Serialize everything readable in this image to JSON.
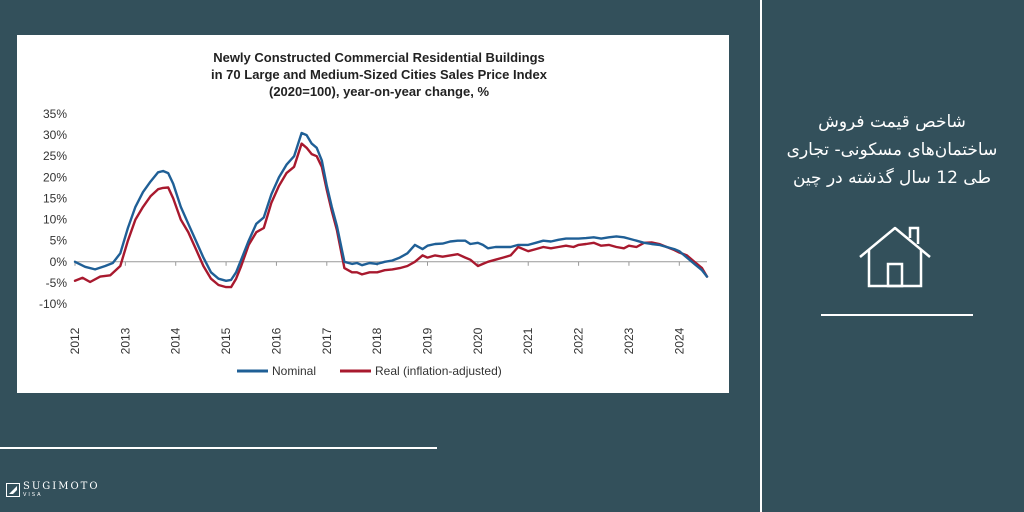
{
  "sidebar": {
    "title_lines": [
      "شاخص قیمت فروش",
      "ساختمان‌های مسکونی- تجاری",
      "طی 12 سال گذشته در چین"
    ],
    "icon": "house-icon"
  },
  "brand": {
    "name": "SUGIMOTO",
    "sub": "VISA"
  },
  "chart_data": {
    "type": "line",
    "title_lines": [
      "Newly Constructed Commercial Residential Buildings",
      "in 70 Large and Medium-Sized Cities Sales Price Index",
      "(2020=100),  year-on-year change, %"
    ],
    "xlabel": "",
    "ylabel": "",
    "ylim": [
      -10,
      35
    ],
    "xlim": [
      2012,
      2024.55
    ],
    "yticks": [
      -10,
      -5,
      0,
      5,
      10,
      15,
      20,
      25,
      30,
      35
    ],
    "ytick_labels": [
      "-10%",
      "-5%",
      "0%",
      "5%",
      "10%",
      "15%",
      "20%",
      "25%",
      "30%",
      "35%"
    ],
    "xticks": [
      2012,
      2013,
      2014,
      2015,
      2016,
      2017,
      2018,
      2019,
      2020,
      2021,
      2022,
      2023,
      2024
    ],
    "xtick_labels": [
      "2012",
      "2013",
      "2014",
      "2015",
      "2016",
      "2017",
      "2018",
      "2019",
      "2020",
      "2021",
      "2022",
      "2023",
      "2024"
    ],
    "grid": false,
    "legend": "bottom",
    "series": [
      {
        "name": "Nominal",
        "color": "#1f5f96",
        "x": [
          2012.0,
          2012.2,
          2012.4,
          2012.6,
          2012.75,
          2012.9,
          2013.05,
          2013.2,
          2013.35,
          2013.5,
          2013.65,
          2013.75,
          2013.85,
          2013.95,
          2014.1,
          2014.25,
          2014.4,
          2014.55,
          2014.7,
          2014.85,
          2015.0,
          2015.1,
          2015.2,
          2015.3,
          2015.45,
          2015.6,
          2015.75,
          2015.9,
          2016.05,
          2016.2,
          2016.35,
          2016.5,
          2016.6,
          2016.7,
          2016.8,
          2016.9,
          2017.0,
          2017.1,
          2017.2,
          2017.35,
          2017.5,
          2017.6,
          2017.7,
          2017.85,
          2018.0,
          2018.15,
          2018.3,
          2018.45,
          2018.6,
          2018.75,
          2018.9,
          2019.0,
          2019.15,
          2019.3,
          2019.45,
          2019.6,
          2019.75,
          2019.85,
          2020.0,
          2020.1,
          2020.2,
          2020.35,
          2020.5,
          2020.65,
          2020.8,
          2021.0,
          2021.15,
          2021.3,
          2021.45,
          2021.6,
          2021.75,
          2021.9,
          2022.0,
          2022.15,
          2022.3,
          2022.45,
          2022.6,
          2022.75,
          2022.9,
          2023.0,
          2023.15,
          2023.3,
          2023.45,
          2023.6,
          2023.75,
          2023.9,
          2024.0,
          2024.15,
          2024.3,
          2024.45,
          2024.55
        ],
        "values": [
          0,
          -1.2,
          -1.8,
          -1.0,
          -0.3,
          2,
          8,
          13,
          16.5,
          19,
          21.2,
          21.5,
          21,
          18.5,
          13,
          9,
          5,
          1,
          -2.5,
          -4,
          -4.5,
          -4.3,
          -2.5,
          0.5,
          5,
          9,
          10.5,
          16,
          20,
          23,
          25,
          30.5,
          30,
          28,
          27,
          24,
          18,
          13,
          8.5,
          0,
          -0.5,
          -0.3,
          -0.8,
          -0.3,
          -0.5,
          0,
          0.3,
          1,
          2,
          4,
          3,
          3.8,
          4.2,
          4.3,
          4.8,
          5,
          5,
          4.2,
          4.5,
          4,
          3.2,
          3.5,
          3.5,
          3.5,
          4,
          4,
          4.5,
          5,
          4.8,
          5.2,
          5.5,
          5.5,
          5.5,
          5.6,
          5.8,
          5.5,
          5.8,
          6,
          5.8,
          5.5,
          5,
          4.5,
          4.2,
          4,
          3.5,
          3,
          2.5,
          1,
          -0.5,
          -2,
          -3.5
        ]
      },
      {
        "name": "Real (inflation-adjusted)",
        "color": "#a8192e",
        "x": [
          2012.0,
          2012.15,
          2012.3,
          2012.5,
          2012.7,
          2012.9,
          2013.05,
          2013.2,
          2013.35,
          2013.5,
          2013.65,
          2013.75,
          2013.85,
          2013.95,
          2014.1,
          2014.25,
          2014.4,
          2014.55,
          2014.7,
          2014.85,
          2015.0,
          2015.1,
          2015.2,
          2015.3,
          2015.45,
          2015.6,
          2015.75,
          2015.9,
          2016.05,
          2016.2,
          2016.35,
          2016.5,
          2016.6,
          2016.7,
          2016.8,
          2016.9,
          2017.0,
          2017.1,
          2017.2,
          2017.35,
          2017.5,
          2017.6,
          2017.7,
          2017.85,
          2018.0,
          2018.15,
          2018.3,
          2018.45,
          2018.6,
          2018.75,
          2018.9,
          2019.0,
          2019.15,
          2019.3,
          2019.45,
          2019.6,
          2019.75,
          2019.85,
          2020.0,
          2020.1,
          2020.2,
          2020.35,
          2020.5,
          2020.65,
          2020.8,
          2021.0,
          2021.15,
          2021.3,
          2021.45,
          2021.6,
          2021.75,
          2021.9,
          2022.0,
          2022.15,
          2022.3,
          2022.45,
          2022.6,
          2022.75,
          2022.9,
          2023.0,
          2023.15,
          2023.3,
          2023.45,
          2023.6,
          2023.75,
          2023.9,
          2024.0,
          2024.15,
          2024.3,
          2024.45,
          2024.55
        ],
        "values": [
          -4.5,
          -3.8,
          -4.8,
          -3.5,
          -3.2,
          -1,
          5,
          10,
          13,
          15.5,
          17.2,
          17.5,
          17.6,
          15,
          10,
          7,
          3,
          -1,
          -4,
          -5.5,
          -6,
          -6,
          -4,
          -1,
          4,
          7,
          8,
          14,
          18,
          21,
          22.5,
          28,
          27,
          25.5,
          25,
          22.5,
          17,
          12,
          7.5,
          -1.5,
          -2.5,
          -2.5,
          -3,
          -2.5,
          -2.5,
          -2,
          -1.8,
          -1.5,
          -1,
          0,
          1.5,
          1,
          1.5,
          1.2,
          1.5,
          1.8,
          1,
          0.5,
          -1,
          -0.5,
          0,
          0.5,
          1,
          1.5,
          3.5,
          2.5,
          3,
          3.5,
          3.2,
          3.5,
          3.8,
          3.5,
          4,
          4.2,
          4.5,
          3.8,
          4,
          3.5,
          3.2,
          3.8,
          3.5,
          4.5,
          4.6,
          4.2,
          3.5,
          2.8,
          2.2,
          1.5,
          0,
          -1.5,
          -3.5
        ]
      }
    ]
  }
}
